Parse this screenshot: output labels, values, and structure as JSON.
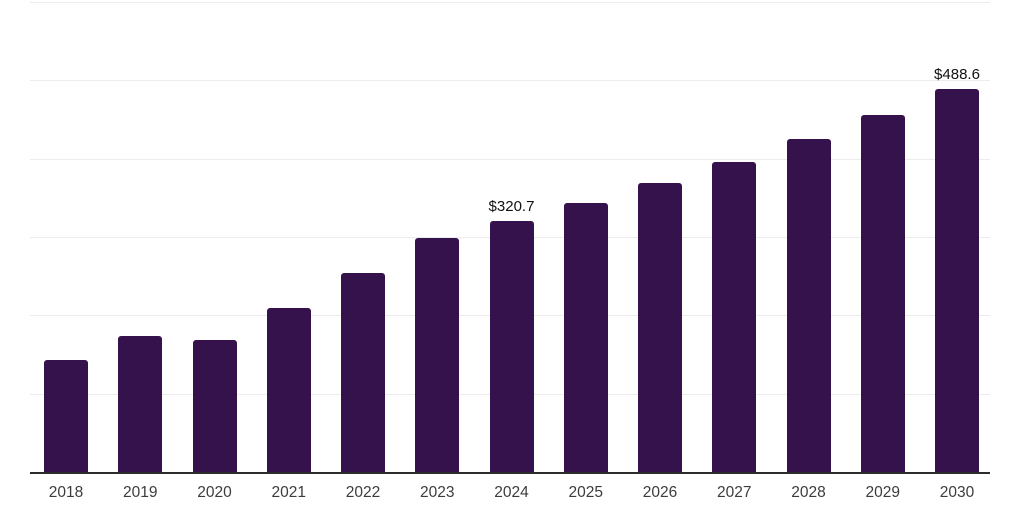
{
  "chart_data": {
    "type": "bar",
    "title": "",
    "xlabel": "",
    "ylabel": "",
    "categories": [
      "2018",
      "2019",
      "2020",
      "2021",
      "2022",
      "2023",
      "2024",
      "2025",
      "2026",
      "2027",
      "2028",
      "2029",
      "2030"
    ],
    "values": [
      143,
      174,
      168,
      210,
      254,
      299,
      320.7,
      344,
      369,
      396,
      425,
      456,
      488.6
    ],
    "value_labels": {
      "2024": "$320.7",
      "2030": "$488.6"
    },
    "ylim": [
      0,
      600
    ],
    "gridline_step": 100,
    "grid": true,
    "y_axis_labels_visible": false,
    "legend": "none",
    "colors": {
      "bar": "#35124b",
      "axis_line": "#2d2d2d",
      "gridline": "#ececf0",
      "tick_label": "#3c3c3c",
      "value_label": "#111111",
      "background": "#ffffff"
    }
  }
}
